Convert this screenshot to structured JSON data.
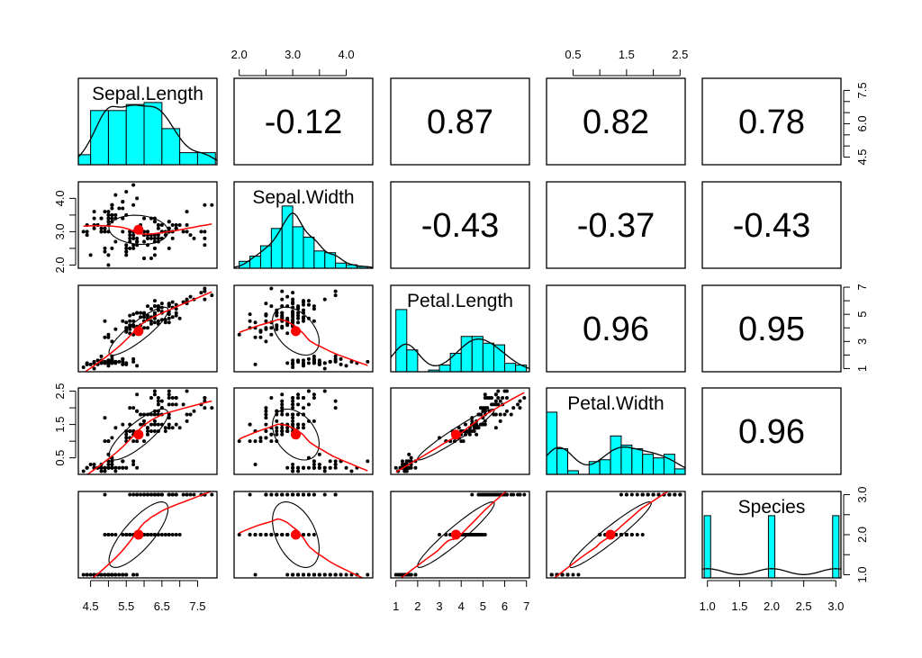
{
  "chart_data": {
    "type": "scatter-matrix",
    "title": "",
    "grid": false,
    "variables": [
      {
        "name": "Sepal.Length",
        "range": [
          4.3,
          7.9
        ],
        "hist_start": 4.0,
        "hist_width": 0.5,
        "ticks": [
          4.5,
          5.0,
          5.5,
          6.0,
          6.5,
          7.0,
          7.5
        ],
        "tick_labels": [
          "4.5",
          "5.5",
          "6.5",
          "7.5"
        ],
        "tick_label_values": [
          4.5,
          5.5,
          6.5,
          7.5
        ],
        "right_ticks": [
          4.5,
          5.0,
          5.5,
          6.0,
          6.5,
          7.0,
          7.5
        ],
        "right_labels": [
          "4.5",
          "6.0",
          "7.5"
        ],
        "right_label_values": [
          4.5,
          6.0,
          7.5
        ]
      },
      {
        "name": "Sepal.Width",
        "range": [
          2.0,
          4.4
        ],
        "hist_start": 2.0,
        "hist_width": 0.2,
        "ticks": [
          2.0,
          2.5,
          3.0,
          3.5,
          4.0
        ],
        "tick_labels": [
          "2.0",
          "3.0",
          "4.0"
        ],
        "tick_label_values": [
          2.0,
          3.0,
          4.0
        ]
      },
      {
        "name": "Petal.Length",
        "range": [
          1.0,
          6.9
        ],
        "hist_start": 1.0,
        "hist_width": 0.5,
        "ticks": [
          1,
          2,
          3,
          4,
          5,
          6,
          7
        ],
        "tick_labels": [
          "1",
          "2",
          "3",
          "4",
          "5",
          "6",
          "7"
        ],
        "tick_label_values": [
          1,
          2,
          3,
          4,
          5,
          6,
          7
        ],
        "right_ticks": [
          1,
          2,
          3,
          4,
          5,
          6,
          7
        ],
        "right_labels": [
          "1",
          "3",
          "5",
          "7"
        ],
        "right_label_values": [
          1,
          3,
          5,
          7
        ]
      },
      {
        "name": "Petal.Width",
        "range": [
          0.1,
          2.5
        ],
        "hist_start": 0.0,
        "hist_width": 0.2,
        "ticks": [
          0.5,
          1.0,
          1.5,
          2.0,
          2.5
        ],
        "tick_labels": [
          "0.5",
          "1.5",
          "2.5"
        ],
        "tick_label_values": [
          0.5,
          1.5,
          2.5
        ]
      },
      {
        "name": "Species",
        "range": [
          1,
          3
        ],
        "hist_start": 0.95,
        "hist_width": 0.1,
        "ticks": [
          1.0,
          1.5,
          2.0,
          2.5,
          3.0
        ],
        "tick_labels": [
          "1.0",
          "1.5",
          "2.0",
          "2.5",
          "3.0"
        ],
        "tick_label_values": [
          1.0,
          1.5,
          2.0,
          2.5,
          3.0
        ],
        "right_ticks": [
          1.0,
          1.5,
          2.0,
          2.5,
          3.0
        ],
        "right_labels": [
          "1.0",
          "2.0",
          "3.0"
        ],
        "right_label_values": [
          1.0,
          2.0,
          3.0
        ]
      }
    ],
    "correlations": [
      {
        "row": 0,
        "col": 1,
        "label": "-0.12"
      },
      {
        "row": 0,
        "col": 2,
        "label": "0.87"
      },
      {
        "row": 0,
        "col": 3,
        "label": "0.82"
      },
      {
        "row": 0,
        "col": 4,
        "label": "0.78"
      },
      {
        "row": 1,
        "col": 2,
        "label": "-0.43"
      },
      {
        "row": 1,
        "col": 3,
        "label": "-0.37"
      },
      {
        "row": 1,
        "col": 4,
        "label": "-0.43"
      },
      {
        "row": 2,
        "col": 3,
        "label": "0.96"
      },
      {
        "row": 2,
        "col": 4,
        "label": "0.95"
      },
      {
        "row": 3,
        "col": 4,
        "label": "0.96"
      }
    ],
    "colors": {
      "hist": "#00ffff",
      "smooth": "#ff0000",
      "mean": "#ff0000",
      "points": "#000000"
    },
    "observations": {
      "Sepal.Length": [
        5.1,
        4.9,
        4.7,
        4.6,
        5.0,
        5.4,
        4.6,
        5.0,
        4.4,
        4.9,
        5.4,
        4.8,
        4.8,
        4.3,
        5.8,
        5.7,
        5.4,
        5.1,
        5.7,
        5.1,
        5.4,
        5.1,
        4.6,
        5.1,
        4.8,
        5.0,
        5.0,
        5.2,
        5.2,
        4.7,
        4.8,
        5.4,
        5.2,
        5.5,
        4.9,
        5.0,
        5.5,
        4.9,
        4.4,
        5.1,
        5.0,
        4.5,
        4.4,
        5.0,
        5.1,
        4.8,
        5.1,
        4.6,
        5.3,
        5.0,
        7.0,
        6.4,
        6.9,
        5.5,
        6.5,
        5.7,
        6.3,
        4.9,
        6.6,
        5.2,
        5.0,
        5.9,
        6.0,
        6.1,
        5.6,
        6.7,
        5.6,
        5.8,
        6.2,
        5.6,
        5.9,
        6.1,
        6.3,
        6.1,
        6.4,
        6.6,
        6.8,
        6.7,
        6.0,
        5.7,
        5.5,
        5.5,
        5.8,
        6.0,
        5.4,
        6.0,
        6.7,
        6.3,
        5.6,
        5.5,
        5.5,
        6.1,
        5.8,
        5.0,
        5.6,
        5.7,
        5.7,
        6.2,
        5.1,
        5.7,
        6.3,
        5.8,
        7.1,
        6.3,
        6.5,
        7.6,
        4.9,
        7.3,
        6.7,
        7.2,
        6.5,
        6.4,
        6.8,
        5.7,
        5.8,
        6.4,
        6.5,
        7.7,
        7.7,
        6.0,
        6.9,
        5.6,
        7.7,
        6.3,
        6.7,
        7.2,
        6.2,
        6.1,
        6.4,
        7.2,
        7.4,
        7.9,
        6.4,
        6.3,
        6.1,
        7.7,
        6.3,
        6.4,
        6.0,
        6.9,
        6.7,
        6.9,
        5.8,
        6.8,
        6.7,
        6.7,
        6.3,
        6.5,
        6.2,
        5.9
      ],
      "Sepal.Width": [
        3.5,
        3.0,
        3.2,
        3.1,
        3.6,
        3.9,
        3.4,
        3.4,
        2.9,
        3.1,
        3.7,
        3.4,
        3.0,
        3.0,
        4.0,
        4.4,
        3.9,
        3.5,
        3.8,
        3.8,
        3.4,
        3.7,
        3.6,
        3.3,
        3.4,
        3.0,
        3.4,
        3.5,
        3.4,
        3.2,
        3.1,
        3.4,
        4.1,
        4.2,
        3.1,
        3.2,
        3.5,
        3.6,
        3.0,
        3.4,
        3.5,
        2.3,
        3.2,
        3.5,
        3.8,
        3.0,
        3.8,
        3.2,
        3.7,
        3.3,
        3.2,
        3.2,
        3.1,
        2.3,
        2.8,
        2.8,
        3.3,
        2.4,
        2.9,
        2.7,
        2.0,
        3.0,
        2.2,
        2.9,
        2.9,
        3.1,
        3.0,
        2.7,
        2.2,
        2.5,
        3.2,
        2.8,
        2.5,
        2.8,
        2.9,
        3.0,
        2.8,
        3.0,
        2.9,
        2.6,
        2.4,
        2.4,
        2.7,
        2.7,
        3.0,
        3.4,
        3.1,
        2.3,
        3.0,
        2.5,
        2.6,
        3.0,
        2.6,
        2.3,
        2.7,
        3.0,
        2.9,
        2.9,
        2.5,
        2.8,
        3.3,
        2.7,
        3.0,
        2.9,
        3.0,
        3.0,
        2.5,
        2.9,
        2.5,
        3.6,
        3.2,
        2.7,
        3.0,
        2.5,
        2.8,
        3.2,
        3.0,
        3.8,
        2.6,
        2.2,
        3.2,
        2.8,
        2.8,
        2.7,
        3.3,
        3.2,
        2.8,
        3.0,
        2.8,
        3.0,
        2.8,
        3.8,
        2.8,
        2.8,
        2.6,
        3.0,
        3.4,
        3.1,
        3.0,
        3.1,
        3.1,
        3.1,
        2.7,
        3.2,
        3.3,
        3.0,
        2.5,
        3.0,
        3.4,
        3.0
      ],
      "Petal.Length": [
        1.4,
        1.4,
        1.3,
        1.5,
        1.4,
        1.7,
        1.4,
        1.5,
        1.4,
        1.5,
        1.5,
        1.6,
        1.4,
        1.1,
        1.2,
        1.5,
        1.3,
        1.4,
        1.7,
        1.5,
        1.7,
        1.5,
        1.0,
        1.7,
        1.9,
        1.6,
        1.6,
        1.5,
        1.4,
        1.6,
        1.6,
        1.5,
        1.5,
        1.4,
        1.5,
        1.2,
        1.3,
        1.4,
        1.3,
        1.5,
        1.3,
        1.3,
        1.3,
        1.6,
        1.9,
        1.4,
        1.6,
        1.4,
        1.5,
        1.4,
        4.7,
        4.5,
        4.9,
        4.0,
        4.6,
        4.5,
        4.7,
        3.3,
        4.6,
        3.9,
        3.5,
        4.2,
        4.0,
        4.7,
        3.6,
        4.4,
        4.5,
        4.1,
        4.5,
        3.9,
        4.8,
        4.0,
        4.9,
        4.7,
        4.3,
        4.4,
        4.8,
        5.0,
        4.5,
        3.5,
        3.8,
        3.7,
        3.9,
        5.1,
        4.5,
        4.5,
        4.7,
        4.4,
        4.1,
        4.0,
        4.4,
        4.6,
        4.0,
        3.3,
        4.2,
        4.2,
        4.2,
        4.3,
        3.0,
        4.1,
        6.0,
        5.1,
        5.9,
        5.6,
        5.8,
        6.6,
        4.5,
        6.3,
        5.8,
        6.1,
        5.1,
        5.3,
        5.5,
        5.0,
        5.1,
        5.3,
        5.5,
        6.7,
        6.9,
        5.0,
        5.7,
        4.9,
        6.7,
        4.9,
        5.7,
        6.0,
        4.8,
        4.9,
        5.6,
        5.8,
        6.1,
        6.4,
        5.6,
        5.1,
        5.6,
        6.1,
        5.6,
        5.5,
        4.8,
        5.4,
        5.6,
        5.1,
        5.1,
        5.9,
        5.7,
        5.2,
        5.0,
        5.2,
        5.4,
        5.1
      ],
      "Petal.Width": [
        0.2,
        0.2,
        0.2,
        0.2,
        0.2,
        0.4,
        0.3,
        0.2,
        0.2,
        0.1,
        0.2,
        0.2,
        0.1,
        0.1,
        0.2,
        0.4,
        0.4,
        0.3,
        0.3,
        0.3,
        0.2,
        0.4,
        0.2,
        0.5,
        0.2,
        0.2,
        0.4,
        0.2,
        0.2,
        0.2,
        0.2,
        0.4,
        0.1,
        0.2,
        0.2,
        0.2,
        0.2,
        0.1,
        0.2,
        0.2,
        0.3,
        0.3,
        0.2,
        0.6,
        0.4,
        0.3,
        0.2,
        0.2,
        0.2,
        0.2,
        1.4,
        1.5,
        1.5,
        1.3,
        1.5,
        1.3,
        1.6,
        1.0,
        1.3,
        1.4,
        1.0,
        1.5,
        1.0,
        1.4,
        1.3,
        1.4,
        1.5,
        1.0,
        1.5,
        1.1,
        1.8,
        1.3,
        1.5,
        1.2,
        1.3,
        1.4,
        1.4,
        1.7,
        1.5,
        1.0,
        1.1,
        1.0,
        1.2,
        1.6,
        1.5,
        1.6,
        1.5,
        1.3,
        1.3,
        1.3,
        1.2,
        1.4,
        1.2,
        1.0,
        1.3,
        1.2,
        1.3,
        1.3,
        1.1,
        1.3,
        2.5,
        1.9,
        2.1,
        1.8,
        2.2,
        2.1,
        1.7,
        1.8,
        1.8,
        2.5,
        2.0,
        1.9,
        2.1,
        2.0,
        2.4,
        2.3,
        1.8,
        2.2,
        2.3,
        1.5,
        2.3,
        2.0,
        2.0,
        1.8,
        2.1,
        1.8,
        1.8,
        1.8,
        2.1,
        1.6,
        1.9,
        2.0,
        2.2,
        1.5,
        1.4,
        2.3,
        2.4,
        1.8,
        1.8,
        2.1,
        2.4,
        2.3,
        1.9,
        2.3,
        2.5,
        2.3,
        1.9,
        2.0,
        2.3,
        1.8
      ],
      "Species": [
        1,
        1,
        1,
        1,
        1,
        1,
        1,
        1,
        1,
        1,
        1,
        1,
        1,
        1,
        1,
        1,
        1,
        1,
        1,
        1,
        1,
        1,
        1,
        1,
        1,
        1,
        1,
        1,
        1,
        1,
        1,
        1,
        1,
        1,
        1,
        1,
        1,
        1,
        1,
        1,
        1,
        1,
        1,
        1,
        1,
        1,
        1,
        1,
        1,
        1,
        2,
        2,
        2,
        2,
        2,
        2,
        2,
        2,
        2,
        2,
        2,
        2,
        2,
        2,
        2,
        2,
        2,
        2,
        2,
        2,
        2,
        2,
        2,
        2,
        2,
        2,
        2,
        2,
        2,
        2,
        2,
        2,
        2,
        2,
        2,
        2,
        2,
        2,
        2,
        2,
        2,
        2,
        2,
        2,
        2,
        2,
        2,
        2,
        2,
        2,
        3,
        3,
        3,
        3,
        3,
        3,
        3,
        3,
        3,
        3,
        3,
        3,
        3,
        3,
        3,
        3,
        3,
        3,
        3,
        3,
        3,
        3,
        3,
        3,
        3,
        3,
        3,
        3,
        3,
        3,
        3,
        3,
        3,
        3,
        3,
        3,
        3,
        3,
        3,
        3,
        3,
        3,
        3,
        3,
        3,
        3,
        3,
        3,
        3,
        3
      ]
    }
  }
}
